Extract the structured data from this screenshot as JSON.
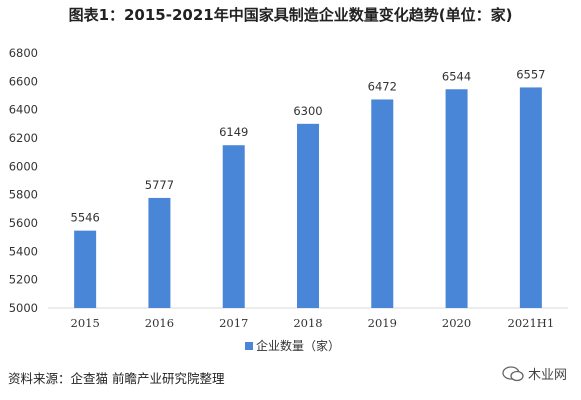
{
  "title": "图表1：2015-2021年中国家具制造企业数量变化趋势(单位：家)",
  "source": "资料来源：企查猫 前瞻产业研究院整理",
  "watermark": "木业网",
  "colors": {
    "bar": "#4a86d8",
    "axis": "#d9d9d9",
    "text": "#333333"
  },
  "chart_data": {
    "type": "bar",
    "categories": [
      "2015",
      "2016",
      "2017",
      "2018",
      "2019",
      "2020",
      "2021H1"
    ],
    "series": [
      {
        "name": "企业数量（家）",
        "values": [
          5546,
          5777,
          6149,
          6300,
          6472,
          6544,
          6557
        ]
      }
    ],
    "ylim": [
      5000,
      6800
    ],
    "yticks": [
      5000,
      5200,
      5400,
      5600,
      5800,
      6000,
      6200,
      6400,
      6600,
      6800
    ],
    "legend_position": "bottom-center",
    "grid": false
  }
}
